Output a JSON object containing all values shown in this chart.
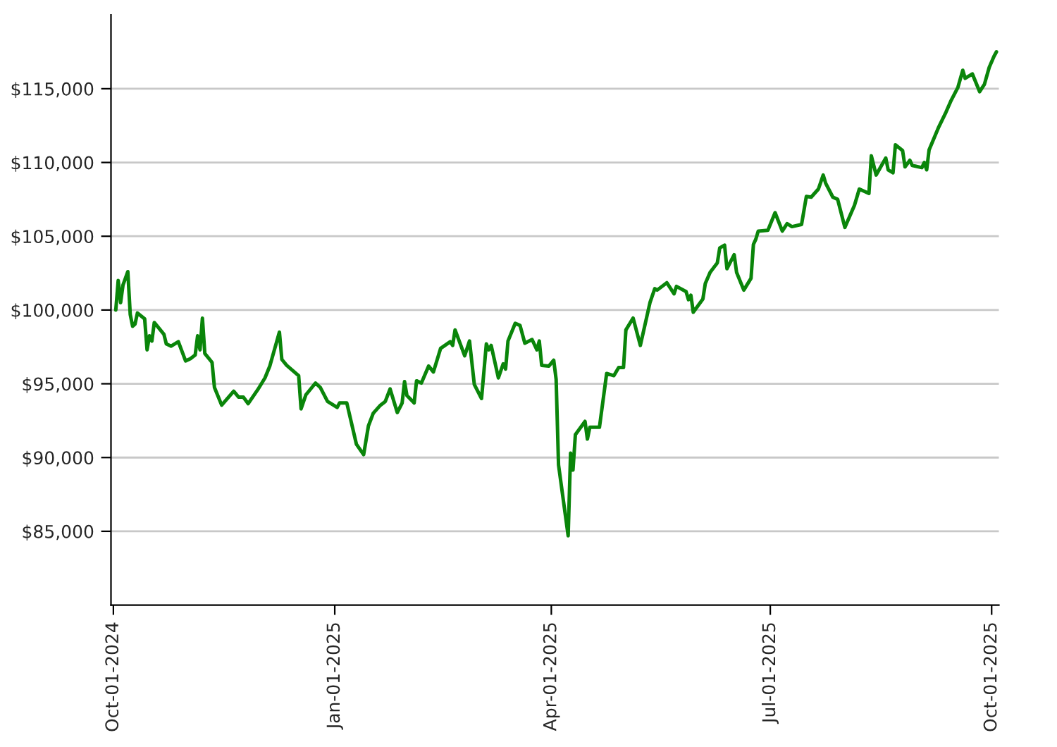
{
  "chart_data": {
    "type": "line",
    "grid": "y",
    "legend": false,
    "marker": "none",
    "line_style": "solid",
    "xlim": [
      "2024-09-30",
      "2025-10-04"
    ],
    "ylim": [
      80000,
      120000
    ],
    "xticks": [
      {
        "value": "2024-10-01",
        "label": "Oct-01-2024"
      },
      {
        "value": "2025-01-01",
        "label": "Jan-01-2025"
      },
      {
        "value": "2025-04-01",
        "label": "Apr-01-2025"
      },
      {
        "value": "2025-07-01",
        "label": "Jul-01-2025"
      },
      {
        "value": "2025-10-01",
        "label": "Oct-01-2025"
      }
    ],
    "yticks": [
      {
        "value": 85000,
        "label": "$85,000"
      },
      {
        "value": 90000,
        "label": "$90,000"
      },
      {
        "value": 95000,
        "label": "$95,000"
      },
      {
        "value": 100000,
        "label": "$100,000"
      },
      {
        "value": 105000,
        "label": "$105,000"
      },
      {
        "value": 110000,
        "label": "$110,000"
      },
      {
        "value": 115000,
        "label": "$115,000"
      }
    ],
    "series": [
      {
        "color": "#0a850a",
        "x": [
          "2024-10-02",
          "2024-10-03",
          "2024-10-04",
          "2024-10-05",
          "2024-10-07",
          "2024-10-08",
          "2024-10-09",
          "2024-10-10",
          "2024-10-11",
          "2024-10-14",
          "2024-10-15",
          "2024-10-16",
          "2024-10-17",
          "2024-10-18",
          "2024-10-22",
          "2024-10-23",
          "2024-10-25",
          "2024-10-28",
          "2024-10-31",
          "2024-11-02",
          "2024-11-04",
          "2024-11-05",
          "2024-11-06",
          "2024-11-07",
          "2024-11-08",
          "2024-11-11",
          "2024-11-12",
          "2024-11-15",
          "2024-11-20",
          "2024-11-22",
          "2024-11-24",
          "2024-11-26",
          "2024-11-30",
          "2024-12-03",
          "2024-12-05",
          "2024-12-09",
          "2024-12-10",
          "2024-12-12",
          "2024-12-17",
          "2024-12-18",
          "2024-12-20",
          "2024-12-24",
          "2024-12-26",
          "2024-12-29",
          "2025-01-02",
          "2025-01-03",
          "2025-01-06",
          "2025-01-10",
          "2025-01-13",
          "2025-01-15",
          "2025-01-17",
          "2025-01-20",
          "2025-01-22",
          "2025-01-24",
          "2025-01-27",
          "2025-01-29",
          "2025-01-30",
          "2025-01-31",
          "2025-02-03",
          "2025-02-04",
          "2025-02-06",
          "2025-02-09",
          "2025-02-11",
          "2025-02-14",
          "2025-02-18",
          "2025-02-19",
          "2025-02-20",
          "2025-02-24",
          "2025-02-26",
          "2025-02-28",
          "2025-03-03",
          "2025-03-05",
          "2025-03-06",
          "2025-03-07",
          "2025-03-10",
          "2025-03-12",
          "2025-03-13",
          "2025-03-14",
          "2025-03-17",
          "2025-03-19",
          "2025-03-21",
          "2025-03-24",
          "2025-03-26",
          "2025-03-27",
          "2025-03-28",
          "2025-03-31",
          "2025-04-02",
          "2025-04-03",
          "2025-04-04",
          "2025-04-08",
          "2025-04-09",
          "2025-04-10",
          "2025-04-11",
          "2025-04-15",
          "2025-04-16",
          "2025-04-17",
          "2025-04-21",
          "2025-04-24",
          "2025-04-27",
          "2025-04-29",
          "2025-05-01",
          "2025-05-02",
          "2025-05-05",
          "2025-05-08",
          "2025-05-12",
          "2025-05-14",
          "2025-05-15",
          "2025-05-19",
          "2025-05-22",
          "2025-05-23",
          "2025-05-27",
          "2025-05-28",
          "2025-05-29",
          "2025-05-30",
          "2025-06-03",
          "2025-06-04",
          "2025-06-06",
          "2025-06-09",
          "2025-06-10",
          "2025-06-12",
          "2025-06-13",
          "2025-06-16",
          "2025-06-17",
          "2025-06-20",
          "2025-06-23",
          "2025-06-24",
          "2025-06-25",
          "2025-06-26",
          "2025-06-30",
          "2025-07-03",
          "2025-07-06",
          "2025-07-08",
          "2025-07-10",
          "2025-07-14",
          "2025-07-16",
          "2025-07-18",
          "2025-07-21",
          "2025-07-23",
          "2025-07-24",
          "2025-07-27",
          "2025-07-29",
          "2025-08-01",
          "2025-08-05",
          "2025-08-07",
          "2025-08-11",
          "2025-08-12",
          "2025-08-14",
          "2025-08-18",
          "2025-08-19",
          "2025-08-21",
          "2025-08-22",
          "2025-08-25",
          "2025-08-26",
          "2025-08-28",
          "2025-08-29",
          "2025-09-02",
          "2025-09-03",
          "2025-09-04",
          "2025-09-05",
          "2025-09-09",
          "2025-09-12",
          "2025-09-14",
          "2025-09-17",
          "2025-09-19",
          "2025-09-20",
          "2025-09-23",
          "2025-09-26",
          "2025-09-28",
          "2025-09-30",
          "2025-10-02",
          "2025-10-03"
        ],
        "values": [
          100000,
          102000,
          100500,
          101700,
          102600,
          99700,
          98900,
          99050,
          99800,
          99400,
          97300,
          98250,
          97900,
          99150,
          98350,
          97700,
          97550,
          97850,
          96550,
          96700,
          96950,
          98250,
          97300,
          99450,
          97050,
          96450,
          94750,
          93550,
          94500,
          94100,
          94100,
          93650,
          94600,
          95400,
          96200,
          98500,
          96650,
          96250,
          95550,
          93300,
          94250,
          95050,
          94750,
          93800,
          93400,
          93700,
          93700,
          90900,
          90200,
          92150,
          93000,
          93550,
          93800,
          94650,
          93050,
          93700,
          95150,
          94200,
          93700,
          95200,
          95050,
          96200,
          95800,
          97400,
          97850,
          97600,
          98650,
          96900,
          97900,
          94950,
          94000,
          97700,
          97300,
          97600,
          95400,
          96350,
          96000,
          97900,
          99100,
          98950,
          97750,
          98000,
          97300,
          97900,
          96250,
          96200,
          96600,
          95300,
          89500,
          84700,
          90300,
          89150,
          91550,
          92450,
          91250,
          92050,
          92050,
          95700,
          95550,
          96100,
          96100,
          98650,
          99450,
          97600,
          100500,
          101450,
          101350,
          101850,
          101100,
          101600,
          101250,
          100700,
          101000,
          99850,
          100750,
          101800,
          102550,
          103200,
          104200,
          104400,
          102800,
          103750,
          102550,
          101350,
          102150,
          104450,
          104800,
          105350,
          105400,
          106600,
          105350,
          105850,
          105650,
          105800,
          107700,
          107650,
          108200,
          109150,
          108600,
          107650,
          107500,
          105600,
          107100,
          108200,
          107900,
          110450,
          109150,
          110300,
          109500,
          109300,
          111200,
          110800,
          109700,
          110150,
          109800,
          109650,
          110000,
          109500,
          110850,
          112400,
          113400,
          114150,
          115100,
          116250,
          115700,
          116000,
          114800,
          115300,
          116450,
          117200,
          117500
        ]
      }
    ]
  }
}
